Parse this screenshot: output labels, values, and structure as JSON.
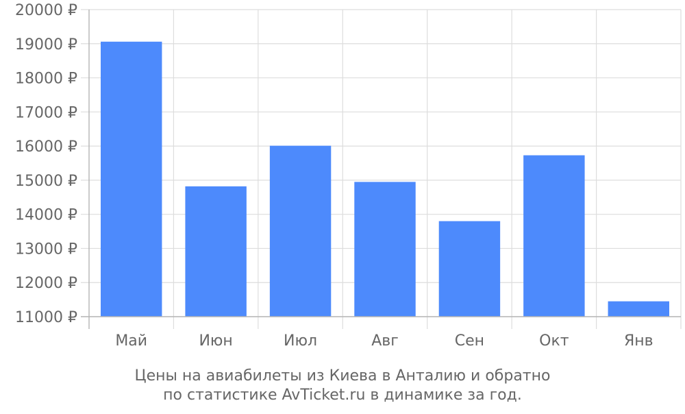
{
  "chart_data": {
    "type": "bar",
    "categories": [
      "Май",
      "Июн",
      "Июл",
      "Авг",
      "Сен",
      "Окт",
      "Янв"
    ],
    "values": [
      19060,
      14820,
      16010,
      14950,
      13800,
      15730,
      11450
    ],
    "ylim": [
      11000,
      20000
    ],
    "yticks": [
      11000,
      12000,
      13000,
      14000,
      15000,
      16000,
      17000,
      18000,
      19000,
      20000
    ],
    "ytick_labels": [
      "11000 ₽",
      "12000 ₽",
      "13000 ₽",
      "14000 ₽",
      "15000 ₽",
      "16000 ₽",
      "17000 ₽",
      "18000 ₽",
      "19000 ₽",
      "20000 ₽"
    ],
    "grid": true,
    "legend": "none",
    "bar_color": "#4d8afc",
    "caption_lines": [
      "Цены на авиабилеты из Киева в Анталию и обратно",
      "по статистике AvTicket.ru в динамике за год."
    ]
  }
}
